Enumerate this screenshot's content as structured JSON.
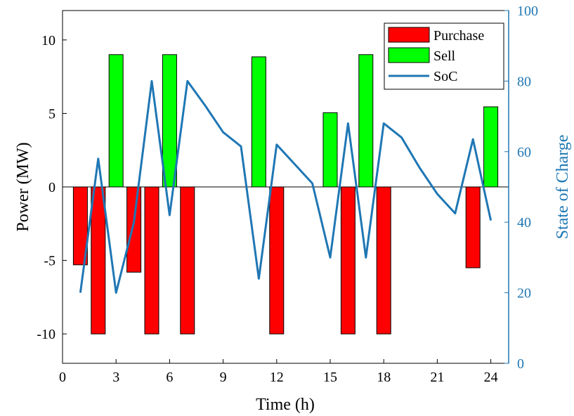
{
  "chart_data": {
    "type": "bar",
    "xlabel": "Time (h)",
    "ylabel": "Power (MW)",
    "y2label": "State of Charge",
    "xlim": [
      0,
      25
    ],
    "ylim": [
      -12,
      12
    ],
    "y2lim": [
      0,
      100
    ],
    "xticks": [
      0,
      3,
      6,
      9,
      12,
      15,
      18,
      21,
      24
    ],
    "yticks": [
      -10,
      -5,
      0,
      5,
      10
    ],
    "y2ticks": [
      0,
      20,
      40,
      60,
      80,
      100
    ],
    "grid": false,
    "legend_position": "top-right",
    "colors": {
      "purchase": "#ff0000",
      "sell": "#00ff00",
      "soc": "#1f77b4"
    },
    "series": [
      {
        "name": "Purchase",
        "kind": "bar",
        "x": [
          1,
          2,
          4,
          5,
          7,
          12,
          16,
          18,
          23
        ],
        "values": [
          -5.3,
          -10,
          -5.8,
          -10,
          -10,
          -10,
          -10,
          -10,
          -5.5
        ]
      },
      {
        "name": "Sell",
        "kind": "bar",
        "x": [
          3,
          6,
          11,
          15,
          17,
          24
        ],
        "values": [
          9,
          9,
          8.85,
          5.05,
          9,
          5.45
        ]
      },
      {
        "name": "SoC",
        "kind": "line",
        "axis": "right",
        "x": [
          1,
          2,
          3,
          4,
          5,
          6,
          7,
          8,
          9,
          10,
          11,
          12,
          13,
          14,
          15,
          16,
          17,
          18,
          19,
          20,
          21,
          22,
          23,
          24
        ],
        "values": [
          20,
          58,
          20,
          40,
          80,
          42,
          80,
          73,
          65.5,
          61.5,
          24,
          62,
          56.5,
          51,
          30,
          68,
          30,
          68,
          64,
          55.5,
          48,
          42.5,
          63.5,
          40.5
        ]
      }
    ]
  }
}
